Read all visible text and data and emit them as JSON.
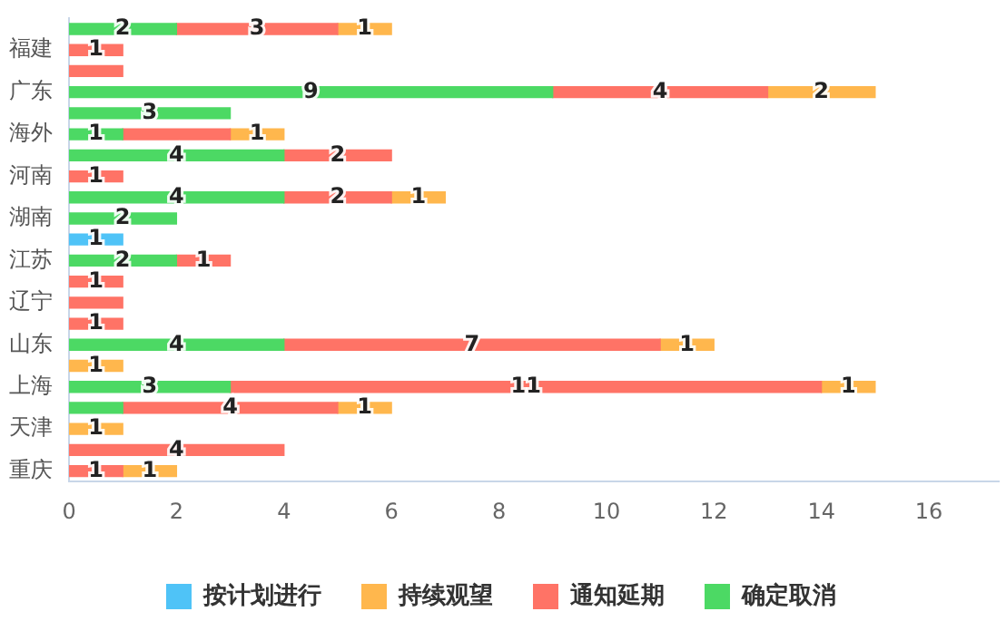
{
  "chart_data": {
    "type": "bar",
    "orientation": "horizontal",
    "stacked": true,
    "categories": [
      null,
      "福建",
      null,
      "广东",
      null,
      "海外",
      null,
      "河南",
      null,
      "湖南",
      null,
      "江苏",
      null,
      "辽宁",
      null,
      "山东",
      null,
      "上海",
      null,
      "天津",
      null,
      "重庆"
    ],
    "xlim": [
      0,
      17.3
    ],
    "xticks": [
      0,
      2,
      4,
      6,
      8,
      10,
      12,
      14,
      16
    ],
    "grid": false,
    "legend": "bottom",
    "series": [
      {
        "name": "确定取消",
        "color": "#4cd964",
        "values": [
          2,
          null,
          null,
          9,
          3,
          1,
          4,
          null,
          4,
          2,
          null,
          2,
          null,
          null,
          null,
          4,
          null,
          3,
          1,
          null,
          null,
          null
        ],
        "value_labels": [
          "2",
          null,
          null,
          "9",
          "3",
          "1",
          "4",
          null,
          "4",
          "2",
          null,
          "2",
          null,
          null,
          null,
          "4",
          null,
          "3",
          null,
          null,
          null,
          null
        ]
      },
      {
        "name": "通知延期",
        "color": "#ff7366",
        "values": [
          3,
          1,
          1,
          4,
          null,
          2,
          2,
          1,
          2,
          null,
          null,
          1,
          1,
          1,
          1,
          7,
          null,
          11,
          4,
          null,
          4,
          1
        ],
        "value_labels": [
          "3",
          "1",
          null,
          "4",
          null,
          null,
          "2",
          "1",
          "2",
          null,
          null,
          "1",
          "1",
          null,
          "1",
          "7",
          null,
          "11",
          "4",
          null,
          "4",
          "1"
        ]
      },
      {
        "name": "持续观望",
        "color": "#ffb74d",
        "values": [
          1,
          null,
          null,
          2,
          null,
          1,
          null,
          null,
          1,
          null,
          null,
          null,
          null,
          null,
          null,
          1,
          1,
          1,
          1,
          1,
          null,
          1
        ],
        "value_labels": [
          "1",
          null,
          null,
          "2",
          null,
          "1",
          null,
          null,
          "1",
          null,
          null,
          null,
          null,
          null,
          null,
          "1",
          "1",
          "1",
          "1",
          "1",
          null,
          "1"
        ]
      },
      {
        "name": "按计划进行",
        "color": "#4fc3f7",
        "values": [
          null,
          null,
          null,
          null,
          null,
          null,
          null,
          null,
          null,
          null,
          1,
          null,
          null,
          null,
          null,
          null,
          null,
          null,
          null,
          null,
          null,
          null
        ],
        "value_labels": [
          null,
          null,
          null,
          null,
          null,
          null,
          null,
          null,
          null,
          null,
          "1",
          null,
          null,
          null,
          null,
          null,
          null,
          null,
          null,
          null,
          null,
          null
        ]
      }
    ]
  }
}
